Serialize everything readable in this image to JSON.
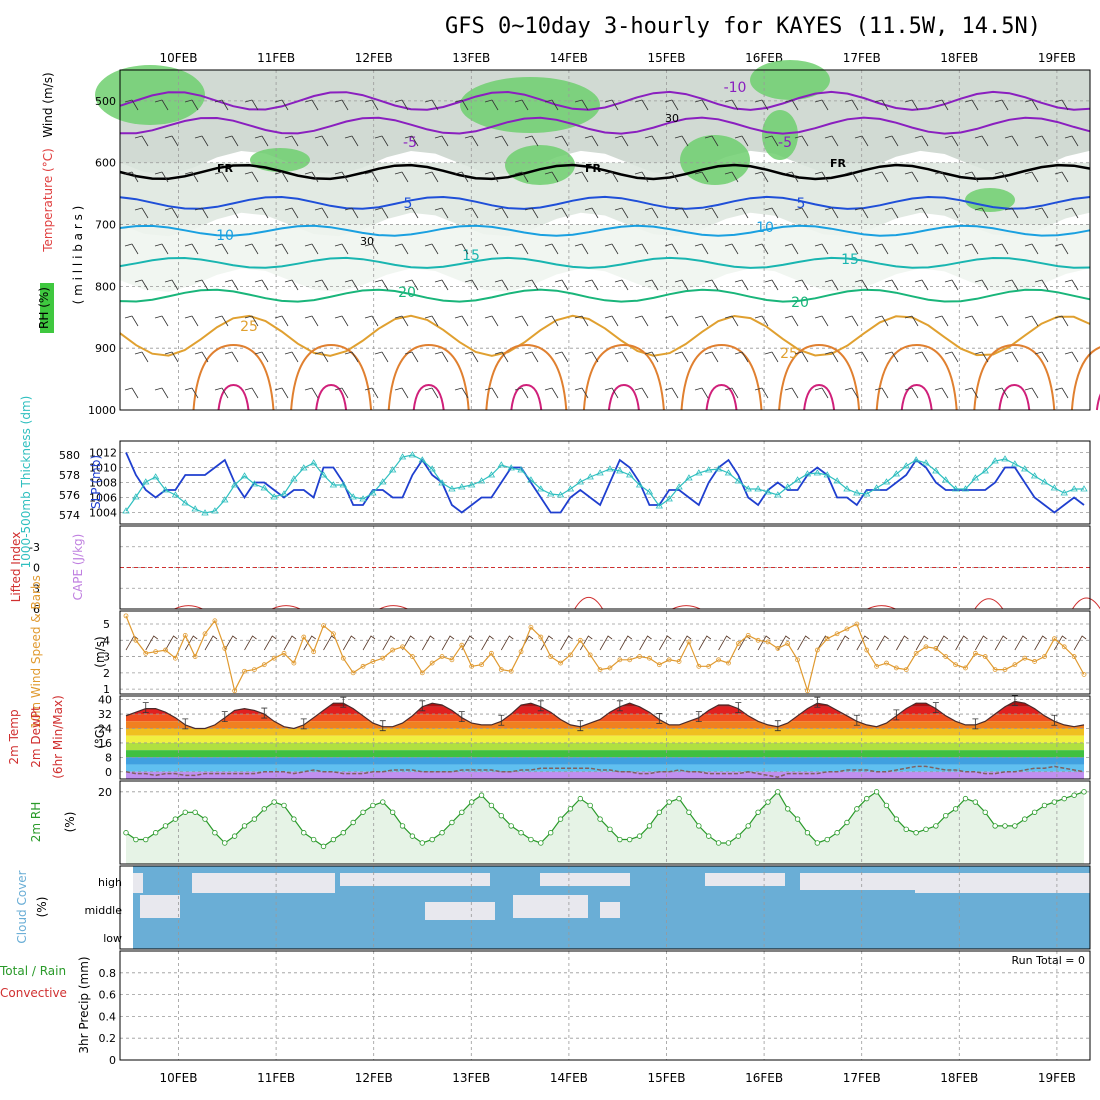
{
  "title": "GFS 0~10day 3-hourly for KAYES (11.5W, 14.5N)",
  "dates": [
    "10FEB",
    "11FEB",
    "12FEB",
    "13FEB",
    "14FEB",
    "15FEB",
    "16FEB",
    "17FEB",
    "18FEB",
    "19FEB"
  ],
  "colors": {
    "slp": "#1f3fcf",
    "thickness": "#2fbfbf",
    "wind": "#e09a30",
    "rh": "#2a9a2a",
    "cloud": "#6aaed6",
    "li": "#d03030",
    "cape": "#c080e0",
    "dew": "#806060",
    "temp": "#4a2a2a"
  },
  "chart_data": [
    {
      "id": "cross-section",
      "type": "contour",
      "ylabel_rh": "RH (%)",
      "ylabel_temp": "Temperature (°C)",
      "ylabel_wind": "Wind (m/s)",
      "ylabel_units": "( m i l l i b a r s )",
      "levels_hpa": [
        500,
        600,
        700,
        800,
        900,
        1000
      ],
      "ylim": [
        450,
        1000
      ],
      "temperature_contours": [
        -10,
        -5,
        0,
        5,
        10,
        15,
        20,
        25
      ],
      "freezing_label": "FR",
      "rh_label": "30",
      "labels": [
        "-10",
        "-5",
        "-5",
        "5",
        "5",
        "10",
        "10",
        "15",
        "15",
        "20",
        "20",
        "25",
        "25"
      ]
    },
    {
      "id": "slp-thickness",
      "type": "line",
      "ylabel_left": "1000-500mb Thickness (dm)",
      "ylabel_right": "SLP (mb)",
      "left_ticks": [
        "580",
        "578",
        "576",
        "574"
      ],
      "right_ticks": [
        "1012",
        "1010",
        "1008",
        "1006",
        "1004"
      ],
      "ylim_slp": [
        1003,
        1013
      ],
      "ylim_thk": [
        573.5,
        581
      ],
      "series": [
        {
          "name": "SLP",
          "values": [
            1012,
            1009,
            1007,
            1006,
            1007,
            1007,
            1009,
            1009,
            1009,
            1010,
            1011,
            1008,
            1006,
            1008,
            1008,
            1007,
            1006,
            1007,
            1007,
            1006,
            1010,
            1010,
            1008,
            1005,
            1005,
            1007,
            1007,
            1006,
            1006,
            1009,
            1011,
            1009,
            1008,
            1005,
            1004,
            1005,
            1006,
            1006,
            1008,
            1010,
            1010,
            1008,
            1006,
            1004,
            1004,
            1006,
            1007,
            1006,
            1005,
            1008,
            1011,
            1010,
            1008,
            1005,
            1005,
            1007,
            1007,
            1006,
            1005,
            1008,
            1010,
            1011,
            1009,
            1006,
            1005,
            1007,
            1008,
            1007,
            1007,
            1009,
            1010,
            1009,
            1006,
            1006,
            1005,
            1007,
            1007,
            1007,
            1008,
            1009,
            1011,
            1010,
            1008,
            1007,
            1007,
            1007,
            1007,
            1007,
            1008,
            1010,
            1010,
            1008,
            1006,
            1005,
            1004,
            1005,
            1006,
            1005
          ]
        },
        {
          "name": "Thickness",
          "values": [
            574.4,
            575.8,
            577.3,
            577.8,
            576.5,
            576.0,
            575.2,
            574.6,
            574.2,
            574.4,
            575.5,
            577.0,
            577.9,
            577.1,
            576.7,
            575.8,
            576.1,
            577.6,
            578.7,
            579.2,
            578.0,
            577.0,
            577.0,
            575.8,
            575.6,
            576.2,
            577.3,
            578.5,
            579.8,
            580.0,
            579.5,
            578.6,
            577.2,
            576.6,
            576.8,
            577.0,
            577.4,
            578.0,
            579.0,
            578.7,
            578.5,
            577.5,
            576.6,
            576.1,
            576.0,
            576.6,
            577.3,
            577.8,
            578.2,
            578.6,
            578.4,
            578.0,
            577.0,
            576.3,
            574.9,
            575.6,
            576.8,
            577.7,
            578.2,
            578.5,
            578.6,
            578.2,
            577.4,
            576.6,
            576.6,
            576.3,
            576.0,
            576.8,
            577.5,
            578.1,
            578.2,
            578.0,
            577.4,
            576.6,
            576.2,
            576.1,
            576.7,
            577.3,
            578.1,
            578.9,
            579.5,
            579.2,
            578.4,
            577.5,
            576.6,
            576.6,
            577.7,
            578.4,
            579.4,
            579.6,
            579.1,
            578.6,
            577.9,
            577.3,
            576.7,
            576.2,
            576.6,
            576.6
          ]
        }
      ]
    },
    {
      "id": "stability",
      "type": "line",
      "ylabel_li": "Lifted Index",
      "ylabel_cape": "CAPE (J/kg)",
      "ticks": [
        "-3",
        "0",
        "3",
        "6"
      ],
      "ylim": [
        -6,
        6
      ],
      "peaks": [
        {
          "x": 0.5,
          "value": 5.6
        },
        {
          "x": 1.5,
          "value": 5.6
        },
        {
          "x": 2.6,
          "value": 5.6
        },
        {
          "x": 4.6,
          "value": 3.2
        },
        {
          "x": 5.6,
          "value": 5.6
        },
        {
          "x": 7.6,
          "value": 5.6
        },
        {
          "x": 8.7,
          "value": 3.6
        },
        {
          "x": 9.7,
          "value": 3.4
        }
      ]
    },
    {
      "id": "wind10m",
      "type": "line",
      "ylabel": "10m Wind Speed & Barbs",
      "ylabel2": "(m/s)",
      "ticks": [
        "5",
        "4",
        "3",
        "2",
        "1"
      ],
      "ylim": [
        0.7,
        5.8
      ],
      "values": [
        5.5,
        4.0,
        3.2,
        3.3,
        3.4,
        2.9,
        4.3,
        3.0,
        4.4,
        5.2,
        3.5,
        0.9,
        2.1,
        2.2,
        2.5,
        2.9,
        3.2,
        2.6,
        4.2,
        3.3,
        4.9,
        4.4,
        2.9,
        2.0,
        2.4,
        2.7,
        2.9,
        3.4,
        3.6,
        3.0,
        2.0,
        2.6,
        3.0,
        2.8,
        3.7,
        2.4,
        2.5,
        3.2,
        2.2,
        2.1,
        3.3,
        4.8,
        4.2,
        3.0,
        2.6,
        3.1,
        4.0,
        3.1,
        2.2,
        2.3,
        2.8,
        2.8,
        3.0,
        2.9,
        2.5,
        2.8,
        2.7,
        3.9,
        2.4,
        2.4,
        2.8,
        2.6,
        3.8,
        4.3,
        4.0,
        3.9,
        3.5,
        3.8,
        2.8,
        0.9,
        3.4,
        4.1,
        4.4,
        4.7,
        5.0,
        3.4,
        2.4,
        2.6,
        2.3,
        2.2,
        3.2,
        3.6,
        3.5,
        3.0,
        2.5,
        2.3,
        3.2,
        3.0,
        2.2,
        2.2,
        2.5,
        2.9,
        2.7,
        3.0,
        4.1,
        3.6,
        3.0,
        1.9
      ]
    },
    {
      "id": "temperature",
      "type": "area",
      "ylabel": "2m Temp",
      "ylabel2": "2m DewPt",
      "ylabel3": "(6hr Min/Max)",
      "ylabel4": "(°C)",
      "ticks": [
        "40",
        "32",
        "24",
        "16",
        "8",
        "0"
      ],
      "ylim": [
        -4,
        42
      ],
      "temp": [
        31,
        33,
        35,
        35,
        33,
        30,
        26,
        24,
        24,
        26,
        30,
        34,
        35,
        34,
        32,
        28,
        25,
        24,
        26,
        30,
        34,
        38,
        38,
        35,
        31,
        27,
        25,
        25,
        27,
        31,
        36,
        38,
        37,
        34,
        30,
        27,
        26,
        26,
        28,
        32,
        37,
        38,
        36,
        33,
        29,
        26,
        25,
        27,
        29,
        33,
        36,
        38,
        36,
        33,
        29,
        26,
        26,
        28,
        30,
        34,
        37,
        37,
        35,
        31,
        28,
        26,
        25,
        27,
        31,
        35,
        38,
        37,
        34,
        31,
        28,
        26,
        25,
        27,
        31,
        35,
        38,
        38,
        35,
        31,
        28,
        26,
        26,
        28,
        32,
        36,
        39,
        38,
        35,
        31,
        28,
        26,
        25,
        26
      ],
      "dew": [
        0,
        -1,
        -1,
        -2,
        -1,
        -1,
        -2,
        -2,
        -1,
        -1,
        -1,
        -1,
        -1,
        -1,
        0,
        0,
        0,
        -1,
        0,
        1,
        0,
        0,
        -1,
        -1,
        -1,
        0,
        0,
        1,
        1,
        1,
        0,
        0,
        0,
        0,
        1,
        1,
        1,
        1,
        0,
        0,
        1,
        1,
        2,
        2,
        2,
        2,
        2,
        2,
        1,
        1,
        0,
        0,
        -1,
        -1,
        0,
        0,
        1,
        0,
        0,
        -1,
        -1,
        -1,
        -1,
        0,
        -1,
        -2,
        -3,
        -1,
        -1,
        -1,
        -1,
        0,
        0,
        1,
        1,
        1,
        0,
        0,
        1,
        2,
        3,
        3,
        2,
        1,
        1,
        0,
        0,
        -1,
        -1,
        0,
        0,
        1,
        2,
        2,
        3,
        2,
        1,
        0
      ]
    },
    {
      "id": "rh2m",
      "type": "line",
      "ylabel": "2m RH",
      "ylabel2": "(%)",
      "ticks": [
        "20"
      ],
      "ylim": [
        0,
        22
      ],
      "values": [
        8,
        6,
        6,
        8,
        10,
        12,
        14,
        14,
        12,
        8,
        5,
        7,
        10,
        12,
        15,
        17,
        16,
        12,
        8,
        6,
        4,
        6,
        8,
        11,
        14,
        16,
        17,
        14,
        10,
        7,
        5,
        6,
        8,
        11,
        14,
        17,
        19,
        16,
        13,
        10,
        8,
        6,
        5,
        8,
        12,
        15,
        18,
        16,
        12,
        9,
        6,
        6,
        7,
        10,
        14,
        17,
        18,
        14,
        10,
        7,
        5,
        5,
        7,
        10,
        14,
        17,
        20,
        15,
        12,
        8,
        5,
        6,
        8,
        11,
        15,
        18,
        20,
        16,
        12,
        9,
        8,
        9,
        10,
        13,
        15,
        18,
        17,
        14,
        10,
        10,
        10,
        12,
        14,
        16,
        17,
        18,
        19,
        20
      ]
    },
    {
      "id": "cloud",
      "type": "heatmap",
      "ylabel": "Cloud Cover",
      "ylabel2": "(%)",
      "levels": [
        "high",
        "middle",
        "low"
      ]
    },
    {
      "id": "precip",
      "type": "bar",
      "ylabel": "3hr Precip (mm)",
      "ylabel_total": "Total / Rain",
      "ylabel_conv": "Convective",
      "ticks": [
        "0.8",
        "0.6",
        "0.4",
        "0.2",
        "0"
      ],
      "ylim": [
        0,
        1
      ],
      "run_total": "Run Total = 0",
      "values": []
    }
  ]
}
